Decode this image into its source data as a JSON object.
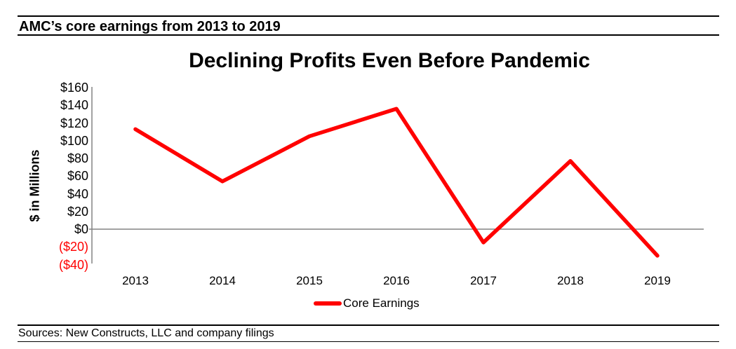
{
  "page": {
    "header": {
      "title": "AMC’s core earnings from 2013 to 2019"
    },
    "footer": {
      "text": "Sources: New Constructs, LLC and company filings"
    }
  },
  "chart_data": {
    "type": "line",
    "title": "Declining Profits Even Before Pandemic",
    "xlabel": "",
    "ylabel": "$ in Millions",
    "categories": [
      "2013",
      "2014",
      "2015",
      "2016",
      "2017",
      "2018",
      "2019"
    ],
    "series": [
      {
        "name": "Core Earnings",
        "color": "#ff0000",
        "values": [
          113,
          54,
          105,
          136,
          -15,
          77,
          -30
        ]
      }
    ],
    "y_axis": {
      "min": -40,
      "max": 160,
      "tick_step": 20,
      "ticks": [
        {
          "label": "$160",
          "value": 160
        },
        {
          "label": "$140",
          "value": 140
        },
        {
          "label": "$120",
          "value": 120
        },
        {
          "label": "$100",
          "value": 100
        },
        {
          "label": "$80",
          "value": 80
        },
        {
          "label": "$60",
          "value": 60
        },
        {
          "label": "$40",
          "value": 40
        },
        {
          "label": "$20",
          "value": 20
        },
        {
          "label": "$0",
          "value": 0
        },
        {
          "label": "($20)",
          "value": -20
        },
        {
          "label": "($40)",
          "value": -40
        }
      ]
    },
    "legend": {
      "label": "Core Earnings",
      "position": "bottom-center"
    },
    "grid": "zero-line-only",
    "colors": {
      "line": "#ff0000",
      "negative_tick_text": "#ff0000",
      "axis": "#848484"
    }
  }
}
